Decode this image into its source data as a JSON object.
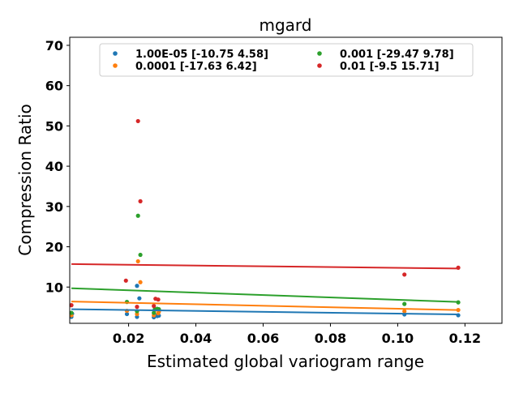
{
  "chart_data": {
    "type": "scatter",
    "title": "mgard",
    "xlabel": "Estimated global variogram range",
    "ylabel": "Compression Ratio",
    "xlim": [
      0.0025,
      0.131
    ],
    "ylim": [
      1.0,
      72.0
    ],
    "xticks": [
      {
        "value": 0.02,
        "label": "0.02"
      },
      {
        "value": 0.04,
        "label": "0.04"
      },
      {
        "value": 0.06,
        "label": "0.06"
      },
      {
        "value": 0.08,
        "label": "0.08"
      },
      {
        "value": 0.1,
        "label": "0.10"
      },
      {
        "value": 0.12,
        "label": "0.12"
      }
    ],
    "yticks": [
      {
        "value": 10,
        "label": "10"
      },
      {
        "value": 20,
        "label": "20"
      },
      {
        "value": 30,
        "label": "30"
      },
      {
        "value": 40,
        "label": "40"
      },
      {
        "value": 50,
        "label": "50"
      },
      {
        "value": 60,
        "label": "60"
      },
      {
        "value": 70,
        "label": "70"
      }
    ],
    "grid": false,
    "legend_position": "top",
    "series": [
      {
        "name": "1.00E-05 [-10.75   4.58]",
        "color": "#1f77b4",
        "points": [
          [
            0.003,
            2.6
          ],
          [
            0.0032,
            3.4
          ],
          [
            0.0195,
            3.3
          ],
          [
            0.0225,
            10.3
          ],
          [
            0.0232,
            7.2
          ],
          [
            0.0225,
            2.6
          ],
          [
            0.0275,
            2.5
          ],
          [
            0.0278,
            3.0
          ],
          [
            0.0285,
            2.8
          ],
          [
            0.029,
            2.9
          ],
          [
            0.102,
            3.2
          ],
          [
            0.118,
            3.0
          ]
        ],
        "fit": [
          [
            0.003,
            4.5
          ],
          [
            0.118,
            3.2
          ]
        ]
      },
      {
        "name": "0.0001 [-17.63   6.42]",
        "color": "#ff7f0e",
        "points": [
          [
            0.003,
            3.0
          ],
          [
            0.0195,
            4.1
          ],
          [
            0.0228,
            16.4
          ],
          [
            0.0235,
            11.2
          ],
          [
            0.0225,
            3.3
          ],
          [
            0.0275,
            3.0
          ],
          [
            0.0278,
            4.3
          ],
          [
            0.0288,
            3.5
          ],
          [
            0.029,
            3.9
          ],
          [
            0.102,
            4.0
          ],
          [
            0.118,
            4.3
          ]
        ],
        "fit": [
          [
            0.003,
            6.4
          ],
          [
            0.118,
            4.3
          ]
        ]
      },
      {
        "name": "0.001 [-29.47   9.78]",
        "color": "#2ca02c",
        "points": [
          [
            0.003,
            3.6
          ],
          [
            0.0195,
            6.3
          ],
          [
            0.0228,
            27.7
          ],
          [
            0.0235,
            18.0
          ],
          [
            0.0225,
            4.0
          ],
          [
            0.0275,
            3.6
          ],
          [
            0.0278,
            4.5
          ],
          [
            0.0285,
            4.6
          ],
          [
            0.029,
            4.5
          ],
          [
            0.102,
            5.8
          ],
          [
            0.118,
            6.2
          ]
        ],
        "fit": [
          [
            0.003,
            9.7
          ],
          [
            0.118,
            6.3
          ]
        ]
      },
      {
        "name": "0.01 [-9.5  15.71]",
        "color": "#d62728",
        "points": [
          [
            0.003,
            5.5
          ],
          [
            0.0192,
            11.6
          ],
          [
            0.0228,
            51.2
          ],
          [
            0.0235,
            31.3
          ],
          [
            0.0225,
            5.1
          ],
          [
            0.0275,
            5.3
          ],
          [
            0.028,
            7.1
          ],
          [
            0.0288,
            6.9
          ],
          [
            0.102,
            13.1
          ],
          [
            0.118,
            14.8
          ]
        ],
        "fit": [
          [
            0.003,
            15.7
          ],
          [
            0.118,
            14.6
          ]
        ]
      }
    ]
  }
}
